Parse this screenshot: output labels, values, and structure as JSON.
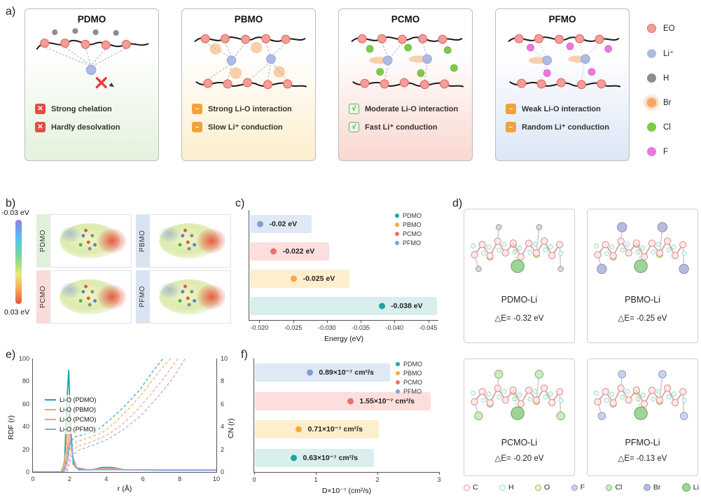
{
  "figure": {
    "panel_labels": {
      "a": "a)",
      "b": "b)",
      "c": "c)",
      "d": "d)",
      "e": "e)",
      "f": "f)"
    }
  },
  "panel_a": {
    "cards": [
      {
        "title": "PDMO",
        "items": [
          {
            "icon": "cross",
            "text": "Strong chelation"
          },
          {
            "icon": "cross",
            "text": "Hardly desolvation"
          }
        ]
      },
      {
        "title": "PBMO",
        "items": [
          {
            "icon": "dash",
            "text": "Strong Li-O interaction"
          },
          {
            "icon": "dash",
            "text": "Slow Li⁺ conduction"
          }
        ]
      },
      {
        "title": "PCMO",
        "items": [
          {
            "icon": "check",
            "text": "Moderate Li-O interaction"
          },
          {
            "icon": "check",
            "text": "Fast Li⁺ conduction"
          }
        ]
      },
      {
        "title": "PFMO",
        "items": [
          {
            "icon": "dash",
            "text": "Weak Li-O interaction"
          },
          {
            "icon": "dash",
            "text": "Random Li⁺ conduction"
          }
        ]
      }
    ],
    "legend": [
      {
        "key": "eo",
        "label": "EO",
        "color": "#f59d98"
      },
      {
        "key": "li",
        "label": "Li⁺",
        "color": "#adbbe3"
      },
      {
        "key": "h",
        "label": "H",
        "color": "#8d8d8d"
      },
      {
        "key": "br",
        "label": "Br",
        "color": "#f4a764"
      },
      {
        "key": "cl",
        "label": "Cl",
        "color": "#7ecb45"
      },
      {
        "key": "f",
        "label": "F",
        "color": "#e878de"
      }
    ]
  },
  "panel_b": {
    "colorbar_top": "-0.03 eV",
    "colorbar_bottom": "0.03 eV",
    "cells": [
      {
        "label": "PDMO"
      },
      {
        "label": "PBMO"
      },
      {
        "label": "PCMO"
      },
      {
        "label": "PFMO"
      }
    ]
  },
  "panel_d": {
    "boxes": [
      {
        "name": "PDMO-Li",
        "energy": "△E= -0.32 eV",
        "variant": "h"
      },
      {
        "name": "PBMO-Li",
        "energy": "△E= -0.25 eV",
        "variant": "br"
      },
      {
        "name": "PCMO-Li",
        "energy": "△E= -0.20 eV",
        "variant": "cl"
      },
      {
        "name": "PFMO-Li",
        "energy": "△E= -0.13 eV",
        "variant": "f"
      }
    ],
    "legend": [
      {
        "label": "C",
        "fill": "#ffffff",
        "stroke": "#e08f8f",
        "size": 9
      },
      {
        "label": "H",
        "fill": "#eefcf8",
        "stroke": "#9fd8cb",
        "size": 9
      },
      {
        "label": "O",
        "fill": "#f5f1cf",
        "stroke": "#b4ad4a",
        "size": 9
      },
      {
        "label": "F",
        "fill": "#c9d2ef",
        "stroke": "#8f9cc9",
        "size": 9
      },
      {
        "label": "Cl",
        "fill": "#cdeac2",
        "stroke": "#7bb56a",
        "size": 9
      },
      {
        "label": "Br",
        "fill": "#b6bcdd",
        "stroke": "#8a92c4",
        "size": 10
      },
      {
        "label": "Li",
        "fill": "#9ed498",
        "stroke": "#6fa868",
        "size": 12
      }
    ]
  },
  "chart_data": [
    {
      "id": "c",
      "type": "bar",
      "subtype": "horizontal-lollipop",
      "xlabel": "Energy (eV)",
      "x_range": [
        -0.0185,
        -0.0465
      ],
      "x_ticks": [
        "-0.020",
        "-0.025",
        "-0.030",
        "-0.035",
        "-0.040",
        "-0.045"
      ],
      "x_tick_values": [
        -0.02,
        -0.025,
        -0.03,
        -0.035,
        -0.04,
        -0.045
      ],
      "legend": [
        {
          "label": "PDMO",
          "color": "#18a5a7"
        },
        {
          "label": "PBMO",
          "color": "#f5a94b"
        },
        {
          "label": "PCMO",
          "color": "#ef6f6f"
        },
        {
          "label": "PFMO",
          "color": "#7a9fd4"
        }
      ],
      "rows": [
        {
          "series": "PFMO",
          "value": -0.02,
          "label": "-0.02 eV",
          "color": "#7a9fd4",
          "band_color": "#dfe9f6"
        },
        {
          "series": "PCMO",
          "value": -0.022,
          "label": "-0.022 eV",
          "color": "#ef6f6f",
          "band_color": "#fcdedd"
        },
        {
          "series": "PBMO",
          "value": -0.025,
          "label": "-0.025 eV",
          "color": "#f5a94b",
          "band_color": "#fdeecd"
        },
        {
          "series": "PDMO",
          "value": -0.038,
          "label": "-0.038 eV",
          "color": "#18a5a7",
          "band_color": "#d9efee"
        }
      ]
    },
    {
      "id": "e",
      "type": "line",
      "xlabel": "r (Å)",
      "ylabel": "RDF (r)",
      "y2label": "CN (r)",
      "xlim": [
        0,
        10
      ],
      "ylim": [
        0,
        100
      ],
      "y2lim": [
        0,
        10
      ],
      "x_ticks": [
        0,
        2,
        4,
        6,
        8,
        10
      ],
      "y_ticks": [
        0,
        20,
        40,
        60,
        80,
        100
      ],
      "y2_ticks": [
        0,
        2,
        4,
        6,
        8,
        10
      ],
      "legend": [
        {
          "label": "Li-O (PDMO)",
          "color": "#18a5a7"
        },
        {
          "label": "Li-O (PBMO)",
          "color": "#f5a94b"
        },
        {
          "label": "Li-O (PCMO)",
          "color": "#f09a9a"
        },
        {
          "label": "Li-O (PFMO)",
          "color": "#8fa8d8"
        }
      ],
      "rdf_series": [
        {
          "name": "Li-O (PDMO)",
          "color": "#18a5a7",
          "points": [
            [
              0,
              0
            ],
            [
              1.55,
              0
            ],
            [
              1.72,
              8
            ],
            [
              1.85,
              62
            ],
            [
              1.95,
              90
            ],
            [
              2.05,
              42
            ],
            [
              2.2,
              7
            ],
            [
              2.5,
              2
            ],
            [
              3.2,
              2
            ],
            [
              3.8,
              4
            ],
            [
              4.3,
              4
            ],
            [
              5,
              2
            ],
            [
              6,
              2
            ],
            [
              7,
              2
            ],
            [
              8,
              2
            ],
            [
              9,
              2
            ],
            [
              10,
              2
            ]
          ]
        },
        {
          "name": "Li-O (PBMO)",
          "color": "#f5a94b",
          "points": [
            [
              0,
              0
            ],
            [
              1.6,
              0
            ],
            [
              1.8,
              18
            ],
            [
              1.95,
              55
            ],
            [
              2.1,
              20
            ],
            [
              2.3,
              4
            ],
            [
              3,
              2
            ],
            [
              3.9,
              3
            ],
            [
              4.4,
              3
            ],
            [
              5,
              2
            ],
            [
              6,
              2
            ],
            [
              8,
              2
            ],
            [
              10,
              2
            ]
          ]
        },
        {
          "name": "Li-O (PCMO)",
          "color": "#f09a9a",
          "points": [
            [
              0,
              0
            ],
            [
              1.62,
              0
            ],
            [
              1.85,
              14
            ],
            [
              2.0,
              38
            ],
            [
              2.15,
              15
            ],
            [
              2.35,
              4
            ],
            [
              3,
              2
            ],
            [
              4,
              3
            ],
            [
              5,
              2
            ],
            [
              7,
              2
            ],
            [
              10,
              2
            ]
          ]
        },
        {
          "name": "Li-O (PFMO)",
          "color": "#8fa8d8",
          "points": [
            [
              0,
              0
            ],
            [
              1.68,
              0
            ],
            [
              1.9,
              11
            ],
            [
              2.05,
              30
            ],
            [
              2.2,
              12
            ],
            [
              2.4,
              3
            ],
            [
              3,
              2
            ],
            [
              4,
              2
            ],
            [
              5,
              2
            ],
            [
              7,
              1.5
            ],
            [
              10,
              1.5
            ]
          ]
        }
      ],
      "cn_series": [
        {
          "name": "PDMO",
          "color": "#18a5a7",
          "points": [
            [
              0,
              0
            ],
            [
              1.7,
              0
            ],
            [
              2.0,
              2.6
            ],
            [
              2.3,
              3.1
            ],
            [
              3,
              3.4
            ],
            [
              3.6,
              3.8
            ],
            [
              4.2,
              4.6
            ],
            [
              5,
              5.8
            ],
            [
              5.8,
              7.2
            ],
            [
              6.5,
              8.8
            ],
            [
              7.1,
              10
            ]
          ]
        },
        {
          "name": "PBMO",
          "color": "#f5a94b",
          "points": [
            [
              0,
              0
            ],
            [
              1.75,
              0
            ],
            [
              2.05,
              2.2
            ],
            [
              2.4,
              2.7
            ],
            [
              3,
              3.0
            ],
            [
              3.8,
              3.5
            ],
            [
              4.5,
              4.4
            ],
            [
              5.3,
              5.7
            ],
            [
              6.1,
              7.2
            ],
            [
              6.9,
              8.9
            ],
            [
              7.5,
              10
            ]
          ]
        },
        {
          "name": "PCMO",
          "color": "#f09a9a",
          "points": [
            [
              0,
              0
            ],
            [
              1.8,
              0
            ],
            [
              2.1,
              1.8
            ],
            [
              2.5,
              2.3
            ],
            [
              3.1,
              2.6
            ],
            [
              4,
              3.2
            ],
            [
              4.8,
              4.1
            ],
            [
              5.6,
              5.3
            ],
            [
              6.4,
              6.8
            ],
            [
              7.2,
              8.4
            ],
            [
              7.9,
              10
            ]
          ]
        },
        {
          "name": "PFMO",
          "color": "#8fa8d8",
          "points": [
            [
              0,
              0
            ],
            [
              1.85,
              0
            ],
            [
              2.15,
              1.5
            ],
            [
              2.6,
              2.0
            ],
            [
              3.2,
              2.3
            ],
            [
              4.1,
              2.9
            ],
            [
              5,
              3.8
            ],
            [
              5.9,
              5.0
            ],
            [
              6.8,
              6.6
            ],
            [
              7.6,
              8.2
            ],
            [
              8.3,
              10
            ]
          ]
        }
      ]
    },
    {
      "id": "f",
      "type": "bar",
      "subtype": "horizontal-lollipop",
      "xlabel": "D×10⁻⁷ (cm²/s)",
      "x_range": [
        0,
        3
      ],
      "x_ticks": [
        "0",
        "1",
        "2",
        "3"
      ],
      "x_tick_values": [
        0,
        1,
        2,
        3
      ],
      "legend": [
        {
          "label": "PDMO",
          "color": "#18a5a7"
        },
        {
          "label": "PBMO",
          "color": "#f5a94b"
        },
        {
          "label": "PCMO",
          "color": "#ef6f6f"
        },
        {
          "label": "PFMO",
          "color": "#7a9fd4"
        }
      ],
      "rows": [
        {
          "series": "PFMO",
          "value": 0.89,
          "label": "0.89×10⁻⁷ cm²/s",
          "color": "#7a9fd4",
          "band_color": "#dfe9f6"
        },
        {
          "series": "PCMO",
          "value": 1.55,
          "label": "1.55×10⁻⁷ cm²/s",
          "color": "#ef6f6f",
          "band_color": "#fcdedd"
        },
        {
          "series": "PBMO",
          "value": 0.71,
          "label": "0.71×10⁻⁷ cm²/s",
          "color": "#f5a94b",
          "band_color": "#fdeecd"
        },
        {
          "series": "PDMO",
          "value": 0.63,
          "label": "0.63×10⁻⁷ cm²/s",
          "color": "#18a5a7",
          "band_color": "#d9efee"
        }
      ]
    }
  ]
}
